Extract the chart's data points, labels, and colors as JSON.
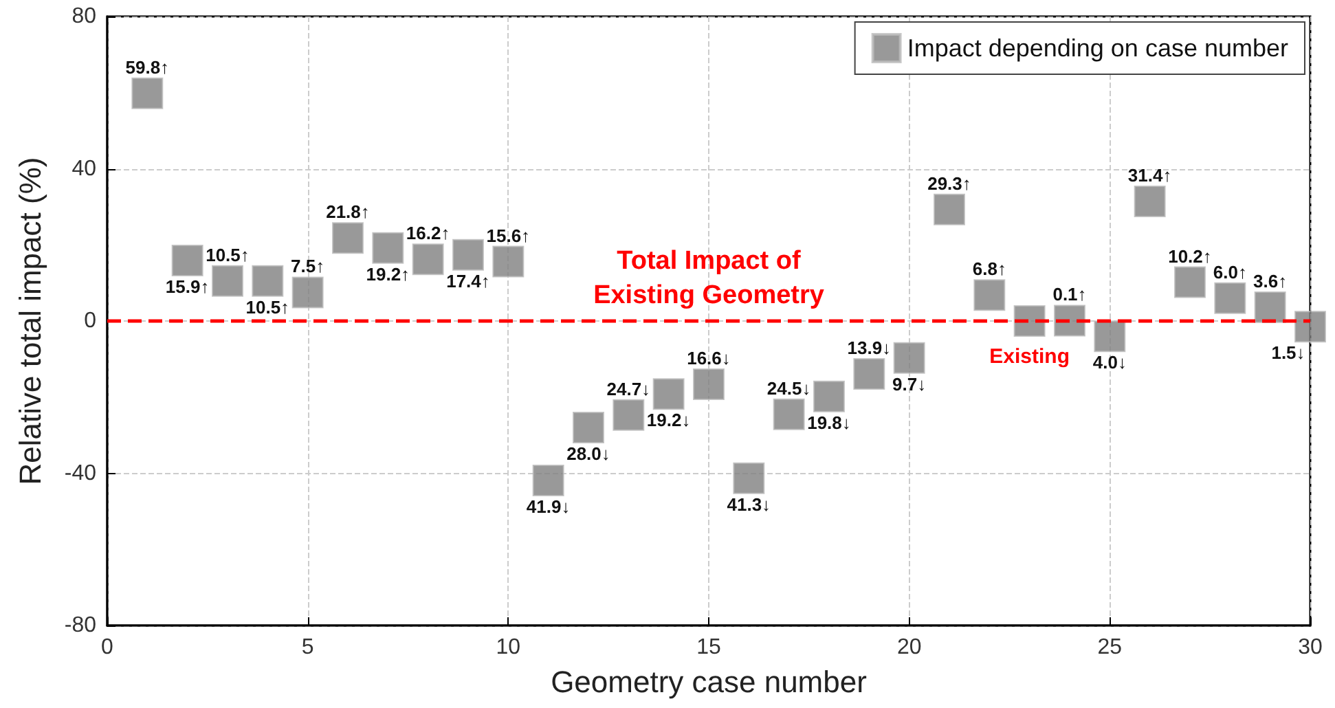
{
  "chart_data": {
    "type": "scatter",
    "xlabel": "Geometry case number",
    "ylabel": "Relative total impact (%)",
    "xlim": [
      0,
      30
    ],
    "xticks": [
      0,
      5,
      10,
      15,
      20,
      25,
      30
    ],
    "ylim": [
      -80,
      80
    ],
    "yticks": [
      -80,
      -40,
      0,
      40,
      80
    ],
    "x": [
      1,
      2,
      3,
      4,
      5,
      6,
      7,
      8,
      9,
      10,
      11,
      12,
      13,
      14,
      15,
      16,
      17,
      18,
      19,
      20,
      21,
      22,
      23,
      24,
      25,
      26,
      27,
      28,
      29,
      30
    ],
    "series": [
      {
        "name": "Impact depending on case number",
        "color": "#7f7f7f",
        "values": [
          59.8,
          15.9,
          10.5,
          10.5,
          7.5,
          21.8,
          19.2,
          16.2,
          17.4,
          15.6,
          -41.9,
          -28.0,
          -24.7,
          -19.2,
          -16.6,
          -41.3,
          -24.5,
          -19.8,
          -13.9,
          -9.7,
          29.3,
          6.8,
          0,
          0.1,
          -4.0,
          31.4,
          10.2,
          6.0,
          3.6,
          -1.5
        ]
      }
    ],
    "ref_lines": [
      {
        "axis": "y",
        "value": 0,
        "label": "Total Impact of\nExisting Geometry",
        "color": "#ff0000",
        "line_style": "dashed"
      }
    ],
    "annotations": [
      {
        "text": "59.8↑",
        "x": 1,
        "y": 59.8
      },
      {
        "text": "15.9↑",
        "x": 2,
        "y": 15.9
      },
      {
        "text": "10.5↑",
        "x": 3,
        "y": 10.5
      },
      {
        "text": "10.5↑",
        "x": 4,
        "y": 10.5
      },
      {
        "text": "7.5↑",
        "x": 5,
        "y": 7.5
      },
      {
        "text": "21.8↑",
        "x": 6,
        "y": 21.8
      },
      {
        "text": "19.2↑",
        "x": 7,
        "y": 19.2
      },
      {
        "text": "16.2↑",
        "x": 8,
        "y": 16.2
      },
      {
        "text": "17.4↑",
        "x": 9,
        "y": 17.4
      },
      {
        "text": "15.6↑",
        "x": 10,
        "y": 15.6
      },
      {
        "text": "41.9↓",
        "x": 11,
        "y": -41.9
      },
      {
        "text": "28.0↓",
        "x": 12,
        "y": -28.0
      },
      {
        "text": "24.7↓",
        "x": 13,
        "y": -24.7
      },
      {
        "text": "19.2↓",
        "x": 14,
        "y": -19.2
      },
      {
        "text": "16.6↓",
        "x": 15,
        "y": -16.6
      },
      {
        "text": "41.3↓",
        "x": 16,
        "y": -41.3
      },
      {
        "text": "24.5↓",
        "x": 17,
        "y": -24.5
      },
      {
        "text": "19.8↓",
        "x": 18,
        "y": -19.8
      },
      {
        "text": "13.9↓",
        "x": 19,
        "y": -13.9
      },
      {
        "text": "9.7↓",
        "x": 20,
        "y": -9.7
      },
      {
        "text": "29.3↑",
        "x": 21,
        "y": 29.3
      },
      {
        "text": "6.8↑",
        "x": 22,
        "y": 6.8
      },
      {
        "text": "0.1↑",
        "x": 24,
        "y": 0.1
      },
      {
        "text": "4.0↓",
        "x": 25,
        "y": -4.0
      },
      {
        "text": "31.4↑",
        "x": 26,
        "y": 31.4
      },
      {
        "text": "10.2↑",
        "x": 27,
        "y": 10.2
      },
      {
        "text": "6.0↑",
        "x": 28,
        "y": 6.0
      },
      {
        "text": "3.6↑",
        "x": 29,
        "y": 3.6
      },
      {
        "text": "1.5↓",
        "x": 30,
        "y": -1.5
      },
      {
        "text": "Existing",
        "x": 23,
        "y": 0
      }
    ],
    "grid": true,
    "legend": "top right",
    "marker": "square"
  }
}
